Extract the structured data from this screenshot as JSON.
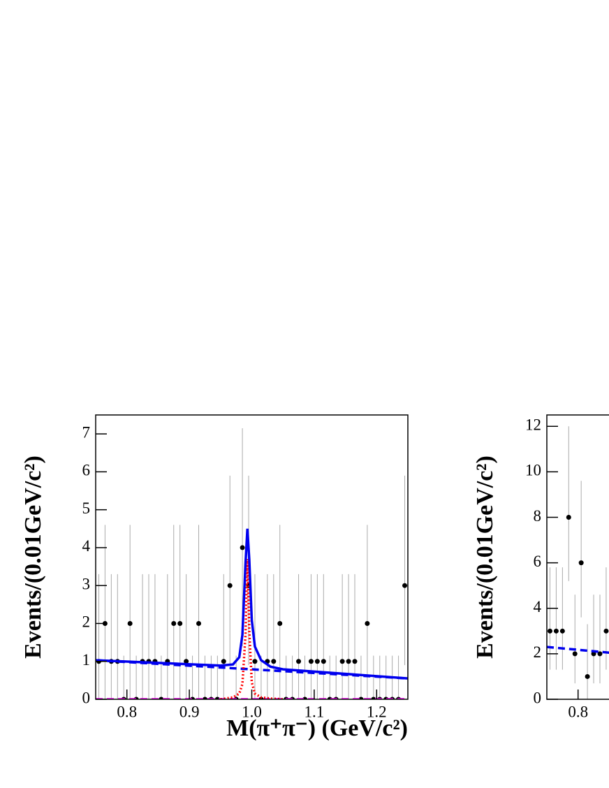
{
  "chart_data": [
    {
      "type": "scatter",
      "y_label": "Events/(0.01GeV/c²)",
      "x_label": "M(π⁺π⁻) (GeV/c²)",
      "xlim": [
        0.75,
        1.25
      ],
      "ylim": [
        0,
        7.5
      ],
      "xticks": [
        0.8,
        0.9,
        {
          "value": 1,
          "label": "1.0"
        },
        1.1,
        1.2
      ],
      "yticks": [
        0,
        1,
        2,
        3,
        4,
        5,
        6,
        7
      ],
      "series": [
        {
          "kind": "points",
          "color": "#000000",
          "x": [
            0.755,
            0.765,
            0.775,
            0.785,
            0.795,
            0.805,
            0.815,
            0.825,
            0.835,
            0.845,
            0.855,
            0.865,
            0.875,
            0.885,
            0.895,
            0.905,
            0.915,
            0.925,
            0.935,
            0.945,
            0.955,
            0.965,
            0.975,
            0.985,
            0.995,
            1.005,
            1.015,
            1.025,
            1.035,
            1.045,
            1.055,
            1.065,
            1.075,
            1.085,
            1.095,
            1.105,
            1.115,
            1.125,
            1.135,
            1.145,
            1.155,
            1.165,
            1.175,
            1.185,
            1.195,
            1.205,
            1.215,
            1.225,
            1.235,
            1.245
          ],
          "values": [
            1,
            2,
            1,
            1,
            0,
            2,
            0,
            1,
            1,
            1,
            0,
            1,
            2,
            2,
            1,
            0,
            2,
            0,
            0,
            0,
            1,
            3,
            0,
            4,
            3,
            1,
            0,
            1,
            1,
            2,
            0,
            0,
            1,
            0,
            1,
            1,
            1,
            0,
            0,
            1,
            1,
            1,
            0,
            2,
            0,
            0,
            0,
            0,
            0,
            3
          ],
          "err_lo": [
            0,
            0,
            0,
            0,
            0,
            0,
            0,
            0,
            0,
            0,
            0,
            0,
            0,
            0,
            0,
            0,
            0,
            0,
            0,
            0,
            0,
            0.9,
            0,
            1.4,
            0.9,
            0,
            0,
            0,
            0,
            0,
            0,
            0,
            0,
            0,
            0,
            0,
            0,
            0,
            0,
            0,
            0,
            0,
            0,
            0,
            0,
            0,
            0,
            0,
            0,
            0.9
          ],
          "err_hi": [
            3.3,
            4.6,
            3.3,
            3.3,
            1.15,
            4.6,
            1.15,
            3.3,
            3.3,
            3.3,
            1.15,
            3.3,
            4.6,
            4.6,
            3.3,
            1.15,
            4.6,
            1.15,
            1.15,
            1.15,
            3.3,
            5.9,
            1.15,
            7.15,
            5.9,
            3.3,
            1.15,
            3.3,
            3.3,
            4.6,
            1.15,
            1.15,
            3.3,
            1.15,
            3.3,
            3.3,
            3.3,
            1.15,
            1.15,
            3.3,
            3.3,
            3.3,
            1.15,
            4.6,
            1.15,
            1.15,
            1.15,
            1.15,
            1.15,
            5.9
          ]
        },
        {
          "kind": "line",
          "color": "#ff00ff",
          "dash": "10,6",
          "x": [
            0.75,
            1.25
          ],
          "values": [
            0,
            0
          ]
        },
        {
          "kind": "line",
          "color": "#0000ee",
          "dash": "10,6",
          "x": [
            0.75,
            1.25
          ],
          "values": [
            1.03,
            0.55
          ]
        },
        {
          "kind": "line",
          "color": "#ff0000",
          "dash": "2,3",
          "x": [
            0.95,
            0.97,
            0.98,
            0.985,
            0.99,
            0.993,
            0.996,
            1.0,
            1.005,
            1.015,
            1.03,
            1.05
          ],
          "values": [
            0,
            0.05,
            0.15,
            0.4,
            1.7,
            3.7,
            1.8,
            0.45,
            0.15,
            0.05,
            0.02,
            0
          ]
        },
        {
          "kind": "line",
          "color": "#0000ee",
          "dash": "",
          "x": [
            0.75,
            0.95,
            0.97,
            0.98,
            0.985,
            0.99,
            0.993,
            0.996,
            1.0,
            1.005,
            1.015,
            1.03,
            1.05,
            1.25
          ],
          "values": [
            1.03,
            0.89,
            0.92,
            1.11,
            1.7,
            3.6,
            4.5,
            3.69,
            2.09,
            1.39,
            1.03,
            0.86,
            0.79,
            0.55
          ]
        }
      ]
    },
    {
      "type": "scatter",
      "y_label": "Events/(0.01GeV/c²)",
      "xlim": [
        0.75,
        1.25
      ],
      "ylim": [
        0,
        12.5
      ],
      "xticks": [
        0.8
      ],
      "yticks": [
        0,
        2,
        4,
        6,
        8,
        10,
        12
      ],
      "series": [
        {
          "kind": "points",
          "color": "#000000",
          "x": [
            0.755,
            0.765,
            0.775,
            0.785,
            0.795,
            0.805,
            0.815,
            0.825,
            0.835,
            0.845
          ],
          "values": [
            3,
            3,
            3,
            8,
            2,
            6,
            1,
            2,
            2,
            3
          ],
          "err_lo": [
            1.3,
            1.3,
            1.3,
            5.2,
            0.7,
            3.6,
            0,
            0.7,
            0.7,
            1.3
          ],
          "err_hi": [
            5.8,
            5.8,
            5.8,
            12,
            4.6,
            9.6,
            3.3,
            4.6,
            4.6,
            5.8
          ]
        },
        {
          "kind": "line",
          "color": "#0000ee",
          "dash": "10,6",
          "x": [
            0.75,
            0.85
          ],
          "values": [
            2.3,
            2.05
          ]
        }
      ]
    }
  ]
}
